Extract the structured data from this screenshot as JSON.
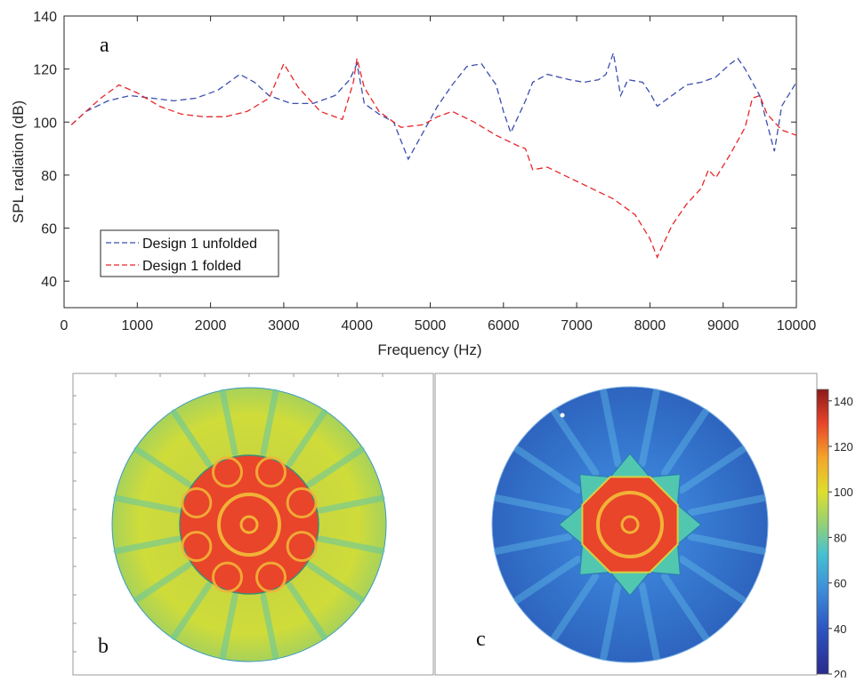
{
  "colors": {
    "unfolded": "#3b4fb0",
    "folded": "#e8262a",
    "axis": "#262626",
    "colormap": [
      "#2a2a8c",
      "#2d55c2",
      "#3e8fd8",
      "#45c0d2",
      "#8fd07a",
      "#dede2e",
      "#f3a52a",
      "#e8452a",
      "#8c1a1a"
    ]
  },
  "chart_data": {
    "type": "line",
    "panel_label": "a",
    "xlabel": "Frequency (Hz)",
    "ylabel": "SPL radiation (dB)",
    "xlim": [
      0,
      10000
    ],
    "ylim": [
      30,
      140
    ],
    "x_ticks": [
      0,
      1000,
      2000,
      3000,
      4000,
      5000,
      6000,
      7000,
      8000,
      9000,
      10000
    ],
    "y_ticks": [
      40,
      60,
      80,
      100,
      120,
      140
    ],
    "grid": false,
    "legend_position": "bottom-left",
    "series": [
      {
        "name": "Design 1 unfolded",
        "style": "dashed",
        "x": [
          100,
          300,
          600,
          900,
          1200,
          1500,
          1800,
          2100,
          2400,
          2600,
          2800,
          3100,
          3400,
          3700,
          3900,
          4000,
          4100,
          4300,
          4500,
          4700,
          4900,
          5100,
          5300,
          5500,
          5700,
          5900,
          6000,
          6100,
          6300,
          6400,
          6600,
          6900,
          7100,
          7300,
          7400,
          7500,
          7600,
          7700,
          7900,
          8000,
          8100,
          8300,
          8500,
          8700,
          8900,
          9100,
          9200,
          9300,
          9500,
          9700,
          9800,
          10000
        ],
        "values": [
          99,
          104,
          108,
          110,
          109,
          108,
          109,
          112,
          118,
          115,
          110,
          107,
          107,
          110,
          116,
          122,
          107,
          103,
          100,
          86,
          96,
          106,
          114,
          121,
          122,
          114,
          104,
          96,
          108,
          115,
          118,
          116,
          115,
          116,
          118,
          126,
          110,
          116,
          115,
          111,
          106,
          110,
          114,
          115,
          117,
          122,
          124,
          120,
          110,
          89,
          106,
          115
        ]
      },
      {
        "name": "Design 1 folded",
        "style": "dashed",
        "x": [
          100,
          300,
          500,
          750,
          1000,
          1300,
          1600,
          1900,
          2200,
          2500,
          2800,
          3000,
          3200,
          3500,
          3800,
          3950,
          4000,
          4100,
          4300,
          4600,
          4900,
          5100,
          5300,
          5600,
          5900,
          6200,
          6300,
          6400,
          6600,
          6900,
          7200,
          7500,
          7800,
          8000,
          8100,
          8300,
          8500,
          8700,
          8800,
          8900,
          9100,
          9300,
          9400,
          9500,
          9600,
          9800,
          10000
        ],
        "values": [
          99,
          104,
          109,
          114,
          111,
          106,
          103,
          102,
          102,
          104,
          109,
          122,
          113,
          104,
          101,
          115,
          124,
          113,
          104,
          98,
          99,
          102,
          104,
          100,
          95,
          91,
          90,
          82,
          83,
          79,
          75,
          71,
          65,
          56,
          49,
          61,
          69,
          75,
          82,
          79,
          88,
          98,
          109,
          110,
          103,
          97,
          95
        ]
      }
    ]
  },
  "panel_b": {
    "label": "b"
  },
  "panel_c": {
    "label": "c"
  },
  "colorbar": {
    "ticks": [
      140,
      120,
      100,
      80,
      60,
      40,
      20
    ],
    "range": [
      20,
      145
    ]
  }
}
